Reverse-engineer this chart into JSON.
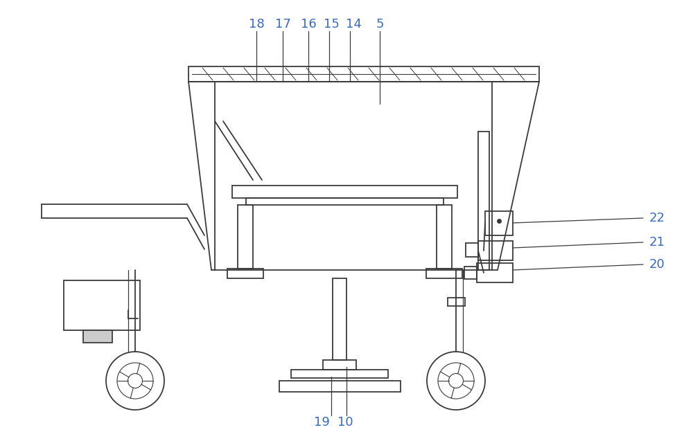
{
  "bg_color": "#ffffff",
  "line_color": "#3a3a3a",
  "label_color": "#3a6abf",
  "figsize": [
    10.0,
    6.37
  ],
  "dpi": 100
}
